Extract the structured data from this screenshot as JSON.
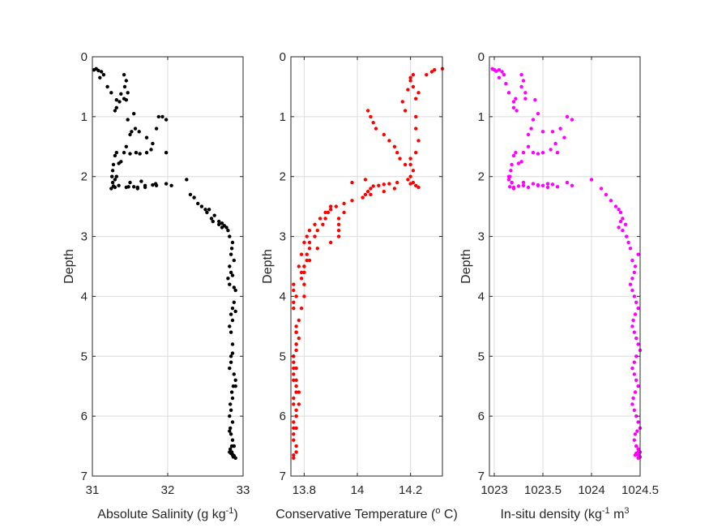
{
  "chart_data": [
    {
      "type": "scatter",
      "xlabel": "Absolute Salinity (g kg-1)",
      "xlabel_parts": [
        "Absolute Salinity (g kg",
        "-1",
        ")"
      ],
      "ylabel": "Depth",
      "xlim": [
        31,
        33
      ],
      "ylim": [
        0,
        7
      ],
      "y_reversed": true,
      "xticks": [
        31,
        32,
        33
      ],
      "xtick_labels": [
        "31",
        "32",
        "33"
      ],
      "yticks": [
        0,
        1,
        2,
        3,
        4,
        5,
        6,
        7
      ],
      "ytick_labels": [
        "0",
        "1",
        "2",
        "3",
        "4",
        "5",
        "6",
        "7"
      ],
      "grid": true,
      "color": "#000000",
      "series": [
        {
          "x": [
            31.02,
            31.05,
            31.08,
            31.12,
            31.15,
            31.1,
            31.2,
            31.25,
            31.42,
            31.45,
            31.43,
            31.47,
            31.38,
            31.45,
            31.36,
            31.32,
            31.3,
            31.32,
            31.42,
            31.55,
            31.57,
            31.5,
            31.47,
            31.52,
            31.62,
            31.72,
            31.88,
            31.93,
            31.98,
            31.85,
            31.8,
            31.78,
            31.72,
            31.63,
            31.58,
            31.5,
            31.45,
            31.42,
            31.38,
            31.35,
            31.32,
            31.3,
            31.28,
            31.27,
            31.26,
            31.3,
            31.5,
            31.65,
            31.98,
            31.85,
            31.7,
            31.6,
            31.55,
            31.45,
            31.35,
            31.3,
            31.28,
            31.25,
            31.27,
            31.32,
            31.48,
            31.6,
            31.7,
            31.8,
            31.84,
            31.98,
            32.05,
            32.25,
            32.3,
            32.35,
            32.4,
            32.45,
            32.5,
            32.52,
            32.58,
            32.6,
            32.68,
            32.72,
            32.55,
            32.62,
            32.68,
            32.72,
            32.75,
            32.78,
            32.8,
            32.82,
            32.85,
            32.88,
            32.86,
            32.84,
            32.82,
            32.8,
            32.82,
            32.84,
            32.86,
            32.88,
            32.9,
            32.88,
            32.86,
            32.84,
            32.82,
            32.84,
            32.86,
            32.9,
            32.86,
            32.84,
            32.82,
            32.84,
            32.86,
            32.88,
            32.9,
            32.87,
            32.85,
            32.83,
            32.82,
            32.84,
            32.86,
            32.9,
            32.86,
            32.83,
            32.82,
            32.84,
            32.86,
            32.88,
            32.85,
            32.83,
            32.82,
            32.84,
            32.86,
            32.88,
            32.9,
            32.87,
            32.85,
            32.84,
            32.86,
            32.88
          ],
          "y": [
            0.22,
            0.2,
            0.23,
            0.25,
            0.3,
            0.35,
            0.5,
            0.6,
            0.3,
            0.4,
            0.5,
            0.6,
            0.62,
            0.72,
            0.75,
            0.85,
            0.9,
            0.72,
            0.7,
            0.95,
            1.2,
            1.3,
            1.05,
            1.25,
            1.25,
            1.35,
            1.0,
            1.0,
            1.05,
            1.2,
            1.45,
            1.55,
            1.6,
            1.62,
            1.6,
            1.62,
            1.5,
            1.6,
            1.75,
            1.78,
            1.6,
            1.65,
            1.8,
            1.9,
            2.0,
            2.05,
            2.1,
            2.08,
            2.12,
            2.15,
            2.18,
            2.2,
            2.17,
            2.18,
            2.15,
            2.18,
            2.16,
            2.2,
            2.1,
            2.0,
            2.17,
            2.18,
            2.15,
            2.14,
            2.12,
            1.6,
            2.15,
            2.05,
            2.3,
            2.35,
            2.45,
            2.5,
            2.55,
            2.6,
            2.7,
            2.75,
            2.8,
            2.85,
            2.55,
            2.65,
            2.75,
            2.78,
            2.82,
            2.85,
            2.9,
            3.0,
            3.2,
            3.4,
            3.1,
            3.3,
            3.5,
            3.7,
            3.8,
            3.6,
            3.65,
            3.85,
            3.9,
            4.1,
            4.2,
            4.3,
            4.5,
            4.6,
            4.4,
            4.25,
            4.8,
            5.0,
            5.2,
            5.1,
            4.95,
            5.3,
            5.4,
            5.5,
            5.6,
            5.8,
            6.0,
            5.9,
            5.7,
            5.5,
            6.1,
            6.2,
            6.25,
            6.3,
            6.4,
            6.5,
            6.5,
            6.55,
            6.6,
            6.62,
            6.65,
            6.5,
            6.7,
            6.68,
            6.6,
            6.62,
            6.64,
            6.66
          ]
        }
      ]
    },
    {
      "type": "scatter",
      "xlabel": "Conservative Temperature (o C)",
      "xlabel_parts": [
        "Conservative Temperature (",
        "o",
        " C)"
      ],
      "ylabel": "Depth",
      "xlim": [
        13.75,
        14.32
      ],
      "ylim": [
        0,
        7
      ],
      "y_reversed": true,
      "xticks": [
        13.8,
        14.0,
        14.2
      ],
      "xtick_labels": [
        "13.8",
        "14",
        "14.2"
      ],
      "yticks": [
        0,
        1,
        2,
        3,
        4,
        5,
        6,
        7
      ],
      "ytick_labels": [
        "0",
        "1",
        "2",
        "3",
        "4",
        "5",
        "6",
        "7"
      ],
      "grid": true,
      "color": "#ff0000",
      "series": [
        {
          "x": [
            14.32,
            14.29,
            14.28,
            14.26,
            14.2,
            14.21,
            14.23,
            14.22,
            14.17,
            14.19,
            14.2,
            14.21,
            14.18,
            14.22,
            14.22,
            14.23,
            14.22,
            14.2,
            14.2,
            14.21,
            14.2,
            14.19,
            14.21,
            14.22,
            14.23,
            14.2,
            14.15,
            14.12,
            14.1,
            14.08,
            14.06,
            14.05,
            14.04,
            14.03,
            14.04,
            14.05,
            14.06,
            14.07,
            14.1,
            14.12,
            14.14,
            14.15,
            14.16,
            14.18,
            14.14,
            14.1,
            14.05,
            14.02,
            13.98,
            13.95,
            13.92,
            13.9,
            13.88,
            13.86,
            13.84,
            13.82,
            13.81,
            13.8,
            13.79,
            13.78,
            14.03,
            13.98,
            13.95,
            13.93,
            13.93,
            13.93,
            13.93,
            13.9,
            13.85,
            13.82,
            13.8,
            13.79,
            13.79,
            13.8,
            13.8,
            13.79,
            13.78,
            13.77,
            13.77,
            13.76,
            13.76,
            13.77,
            13.78,
            13.78,
            13.77,
            13.77,
            13.76,
            13.76,
            13.77,
            13.77,
            13.76,
            13.76,
            13.77,
            13.77,
            13.76,
            13.76,
            13.77,
            13.77,
            13.76,
            13.76,
            13.77,
            13.76,
            13.76,
            13.77,
            13.76,
            13.76,
            13.77,
            13.77,
            13.78,
            13.77,
            13.76,
            13.76,
            13.77,
            13.76,
            13.76,
            13.9,
            13.89,
            13.88,
            13.87,
            13.85,
            13.84,
            13.82,
            13.82,
            13.81,
            13.81,
            13.8,
            13.8
          ],
          "y": [
            0.2,
            0.22,
            0.25,
            0.3,
            0.35,
            0.5,
            0.6,
            0.7,
            0.75,
            0.55,
            0.4,
            0.3,
            0.9,
            1.0,
            1.2,
            1.4,
            1.6,
            1.7,
            1.8,
            1.9,
            2.0,
            2.05,
            2.1,
            2.15,
            2.18,
            2.12,
            2.1,
            2.12,
            2.13,
            2.15,
            2.16,
            2.2,
            2.25,
            2.3,
            0.9,
            1.0,
            1.1,
            1.2,
            1.3,
            1.4,
            1.5,
            1.6,
            1.7,
            1.8,
            2.2,
            2.25,
            2.3,
            2.35,
            2.4,
            2.45,
            2.5,
            2.55,
            2.6,
            2.7,
            2.8,
            2.9,
            3.0,
            3.1,
            3.3,
            3.5,
            2.05,
            2.1,
            2.6,
            2.7,
            2.8,
            2.9,
            3.0,
            3.1,
            3.2,
            3.4,
            3.5,
            3.6,
            3.7,
            3.8,
            4.0,
            4.2,
            4.4,
            4.6,
            4.8,
            5.0,
            5.2,
            5.4,
            5.6,
            5.8,
            6.0,
            6.2,
            6.3,
            6.4,
            6.5,
            6.6,
            6.65,
            6.7,
            5.5,
            5.6,
            5.7,
            5.8,
            5.9,
            6.0,
            6.1,
            6.2,
            4.9,
            5.0,
            5.1,
            5.2,
            5.3,
            5.4,
            4.5,
            4.6,
            4.7,
            4.8,
            3.8,
            3.9,
            4.0,
            4.1,
            4.2,
            2.5,
            2.6,
            2.7,
            2.8,
            2.9,
            3.0,
            3.1,
            3.2,
            3.3,
            3.4,
            3.5,
            3.6
          ]
        }
      ]
    },
    {
      "type": "scatter",
      "xlabel": "In-situ density (kg-1 m3",
      "xlabel_parts": [
        "In-situ density (kg",
        "-1",
        " m",
        "3"
      ],
      "ylabel": "Depth",
      "xlim": [
        1022.95,
        1024.5
      ],
      "ylim": [
        0,
        7
      ],
      "y_reversed": true,
      "xticks": [
        1023,
        1023.5,
        1024,
        1024.5
      ],
      "xtick_labels": [
        "1023",
        "1023.5",
        "1024",
        "1024.5"
      ],
      "yticks": [
        0,
        1,
        2,
        3,
        4,
        5,
        6,
        7
      ],
      "ytick_labels": [
        "0",
        "1",
        "2",
        "3",
        "4",
        "5",
        "6",
        "7"
      ],
      "grid": true,
      "color": "#ff00ff",
      "series": [
        {
          "x": [
            1022.98,
            1023.0,
            1023.02,
            1023.05,
            1023.08,
            1023.1,
            1023.05,
            1023.12,
            1023.15,
            1023.28,
            1023.3,
            1023.28,
            1023.32,
            1023.22,
            1023.2,
            1023.2,
            1023.23,
            1023.32,
            1023.42,
            1023.45,
            1023.38,
            1023.35,
            1023.4,
            1023.5,
            1023.6,
            1023.72,
            1023.75,
            1023.8,
            1023.68,
            1023.63,
            1023.58,
            1023.5,
            1023.45,
            1023.4,
            1023.35,
            1023.3,
            1023.28,
            1023.25,
            1023.22,
            1023.2,
            1023.18,
            1023.17,
            1023.16,
            1023.15,
            1023.18,
            1023.3,
            1023.4,
            1023.5,
            1023.75,
            1023.65,
            1023.55,
            1023.45,
            1023.35,
            1023.25,
            1023.2,
            1023.18,
            1023.15,
            1023.16,
            1023.2,
            1023.3,
            1023.45,
            1023.55,
            1023.6,
            1023.65,
            1023.8,
            1024.0,
            1024.1,
            1024.15,
            1024.2,
            1024.25,
            1024.28,
            1024.3,
            1024.32,
            1024.35,
            1024.3,
            1024.28,
            1024.32,
            1024.36,
            1024.38,
            1024.4,
            1024.42,
            1024.45,
            1024.48,
            1024.44,
            1024.42,
            1024.4,
            1024.42,
            1024.44,
            1024.46,
            1024.48,
            1024.45,
            1024.43,
            1024.42,
            1024.44,
            1024.46,
            1024.48,
            1024.5,
            1024.46,
            1024.44,
            1024.42,
            1024.44,
            1024.46,
            1024.48,
            1024.45,
            1024.43,
            1024.42,
            1024.44,
            1024.46,
            1024.48,
            1024.5,
            1024.47,
            1024.45,
            1024.44,
            1024.46,
            1024.48,
            1024.5,
            1024.47,
            1024.45,
            1024.46,
            1024.48,
            1024.5,
            1024.48,
            1024.46,
            1024.47,
            1024.49
          ],
          "y": [
            0.2,
            0.22,
            0.24,
            0.22,
            0.25,
            0.3,
            0.35,
            0.45,
            0.6,
            0.3,
            0.4,
            0.5,
            0.6,
            0.7,
            0.75,
            0.85,
            0.9,
            0.7,
            0.72,
            0.95,
            1.2,
            1.3,
            1.05,
            1.25,
            1.25,
            1.35,
            1.0,
            1.05,
            1.2,
            1.45,
            1.55,
            1.6,
            1.62,
            1.6,
            1.5,
            1.6,
            1.75,
            1.78,
            1.6,
            1.65,
            1.8,
            1.9,
            2.0,
            2.05,
            2.1,
            2.1,
            2.12,
            2.15,
            2.1,
            2.17,
            2.18,
            2.15,
            2.18,
            2.16,
            2.2,
            2.1,
            2.0,
            2.17,
            2.18,
            2.15,
            2.14,
            2.12,
            2.13,
            1.6,
            2.15,
            2.05,
            2.2,
            2.3,
            2.4,
            2.5,
            2.55,
            2.6,
            2.7,
            2.8,
            2.75,
            2.85,
            2.9,
            3.0,
            3.1,
            3.2,
            3.4,
            3.5,
            3.3,
            3.6,
            3.7,
            3.8,
            3.9,
            4.0,
            4.1,
            4.2,
            4.3,
            4.4,
            4.5,
            4.6,
            4.7,
            4.8,
            4.9,
            5.0,
            5.1,
            5.2,
            5.3,
            5.4,
            5.5,
            5.6,
            5.7,
            5.8,
            5.9,
            6.0,
            6.1,
            6.2,
            6.25,
            6.3,
            6.4,
            6.5,
            6.55,
            6.6,
            6.62,
            6.65,
            6.5,
            6.7,
            6.68,
            6.6,
            6.62,
            6.64,
            6.66
          ]
        }
      ]
    }
  ]
}
